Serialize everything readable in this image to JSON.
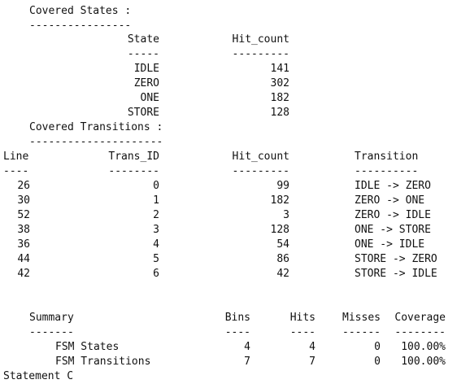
{
  "states_section": {
    "heading": "Covered States :",
    "underline": "----------------",
    "col_state": "State",
    "col_state_rule": "-----",
    "col_hit": "Hit_count",
    "col_hit_rule": "---------",
    "rows": [
      {
        "state": "IDLE",
        "hit": "141"
      },
      {
        "state": "ZERO",
        "hit": "302"
      },
      {
        "state": "ONE",
        "hit": "182"
      },
      {
        "state": "STORE",
        "hit": "128"
      }
    ]
  },
  "transitions_section": {
    "heading": "Covered Transitions :",
    "underline": "---------------------",
    "col_line": "Line",
    "col_line_rule": "----",
    "col_trans_id": "Trans_ID",
    "col_trans_id_rule": "--------",
    "col_hit": "Hit_count",
    "col_hit_rule": "---------",
    "col_transition": "Transition",
    "col_transition_rule": "----------",
    "rows": [
      {
        "line": "26",
        "trans_id": "0",
        "hit": "99",
        "transition": "IDLE -> ZERO"
      },
      {
        "line": "30",
        "trans_id": "1",
        "hit": "182",
        "transition": "ZERO -> ONE"
      },
      {
        "line": "52",
        "trans_id": "2",
        "hit": "3",
        "transition": "ZERO -> IDLE"
      },
      {
        "line": "38",
        "trans_id": "3",
        "hit": "128",
        "transition": "ONE -> STORE"
      },
      {
        "line": "36",
        "trans_id": "4",
        "hit": "54",
        "transition": "ONE -> IDLE"
      },
      {
        "line": "44",
        "trans_id": "5",
        "hit": "86",
        "transition": "STORE -> ZERO"
      },
      {
        "line": "42",
        "trans_id": "6",
        "hit": "42",
        "transition": "STORE -> IDLE"
      }
    ]
  },
  "summary_section": {
    "col_summary": "Summary",
    "col_summary_rule": "-------",
    "col_bins": "Bins",
    "col_bins_rule": "----",
    "col_hits": "Hits",
    "col_hits_rule": "----",
    "col_misses": "Misses",
    "col_misses_rule": "------",
    "col_coverage": "Coverage",
    "col_coverage_rule": "--------",
    "rows": [
      {
        "name": "FSM States",
        "bins": "4",
        "hits": "4",
        "misses": "0",
        "coverage": "100.00%"
      },
      {
        "name": "FSM Transitions",
        "bins": "7",
        "hits": "7",
        "misses": "0",
        "coverage": "100.00%"
      }
    ]
  },
  "cut_off_line": "Statement C"
}
